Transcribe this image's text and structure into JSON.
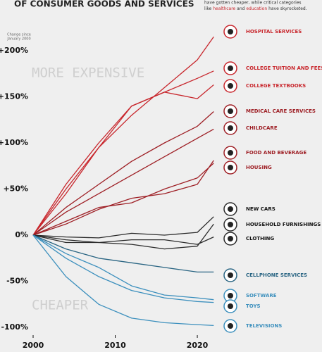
{
  "chart_data": {
    "type": "line",
    "title": "OF CONSUMER GOODS AND SERVICES",
    "note": [
      "have gotten cheaper, while critical categories",
      "like",
      "healthcare",
      "and",
      "education",
      "have skyrocketed."
    ],
    "y_label": [
      "Change since",
      "January 2000"
    ],
    "annotations": [
      "MORE EXPENSIVE",
      "CHEAPER"
    ],
    "x": [
      2000,
      2004,
      2008,
      2012,
      2016,
      2020,
      2022
    ],
    "xlim": [
      2000,
      2023
    ],
    "xticks": [
      2000,
      2010,
      2020
    ],
    "ylim": [
      -100,
      200
    ],
    "yticks": [
      {
        "value": 200,
        "label": "+200%"
      },
      {
        "value": 150,
        "label": "+150%"
      },
      {
        "value": 100,
        "label": "+100%"
      },
      {
        "value": 50,
        "label": "+50%"
      },
      {
        "value": 0,
        "label": "0%"
      },
      {
        "value": -50,
        "label": "-50%"
      },
      {
        "value": -100,
        "label": "-100%"
      }
    ],
    "grid": false,
    "series": [
      {
        "name": "HOSPITAL SERVICES",
        "color": "#c8262c",
        "values": [
          0,
          50,
          95,
          130,
          160,
          190,
          215
        ]
      },
      {
        "name": "COLLEGE TUITION AND FEES",
        "color": "#c8262c",
        "values": [
          0,
          55,
          100,
          140,
          155,
          170,
          178
        ]
      },
      {
        "name": "COLLEGE TEXTBOOKS",
        "color": "#c8262c",
        "values": [
          0,
          45,
          95,
          140,
          155,
          148,
          163
        ]
      },
      {
        "name": "MEDICAL CARE SERVICES",
        "color": "#9e1f25",
        "values": [
          0,
          30,
          55,
          80,
          100,
          118,
          134
        ]
      },
      {
        "name": "CHILDCARE",
        "color": "#9e1f25",
        "values": [
          0,
          25,
          45,
          65,
          85,
          105,
          115
        ]
      },
      {
        "name": "FOOD AND BEVERAGE",
        "color": "#9e1f25",
        "values": [
          0,
          12,
          28,
          40,
          45,
          55,
          81
        ]
      },
      {
        "name": "HOUSING",
        "color": "#9e1f25",
        "values": [
          0,
          15,
          30,
          35,
          50,
          62,
          78
        ]
      },
      {
        "name": "NEW CARS",
        "color": "#2b2b2b",
        "values": [
          0,
          -2,
          -3,
          2,
          0,
          3,
          20
        ]
      },
      {
        "name": "HOUSEHOLD FURNISHINGS",
        "color": "#2b2b2b",
        "values": [
          0,
          -5,
          -8,
          -10,
          -15,
          -12,
          12
        ]
      },
      {
        "name": "CLOTHING",
        "color": "#2b2b2b",
        "values": [
          0,
          -8,
          -8,
          -5,
          -5,
          -10,
          -2
        ]
      },
      {
        "name": "CELLPHONE SERVICES",
        "color": "#2a6583",
        "values": [
          0,
          -15,
          -25,
          -30,
          -35,
          -40,
          -40
        ]
      },
      {
        "name": "SOFTWARE",
        "color": "#3b8fbd",
        "values": [
          0,
          -20,
          -35,
          -55,
          -65,
          -68,
          -70
        ]
      },
      {
        "name": "TOYS",
        "color": "#3b8fbd",
        "values": [
          0,
          -25,
          -45,
          -60,
          -68,
          -72,
          -73
        ]
      },
      {
        "name": "TELEVISIONS",
        "color": "#3b8fbd",
        "values": [
          0,
          -45,
          -75,
          -90,
          -95,
          -97,
          -98
        ]
      }
    ]
  }
}
